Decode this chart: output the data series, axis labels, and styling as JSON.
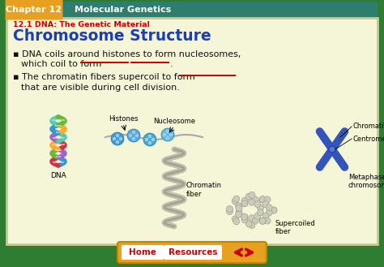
{
  "header_bg": "#2e7d6e",
  "header_chapter_bg": "#e8a020",
  "header_chapter_text": "Chapter 12",
  "header_title_text": "Molecular Genetics",
  "subheader_text": "12.1 DNA: The Genetic Material",
  "subheader_color": "#cc0000",
  "slide_title": "Chromosome Structure",
  "slide_title_color": "#1a3eb8",
  "main_bg": "#f5f5d8",
  "outer_bg": "#2e7d32",
  "bullet1_line1": "▪ DNA coils around histones to form nucleosomes,",
  "bullet1_line2": "which coil to form",
  "bullet2_line1": "▪ The chromatin fibers supercoil to form",
  "bullet2_line2": "that are visible during cell division.",
  "bullet_color": "#111111",
  "underline_color": "#cc0000",
  "bottom_bar_bg": "#e8a020",
  "bottom_bar_text_home": "Home",
  "bottom_bar_text_resources": "Resources",
  "bottom_bar_text_color": "#cc0000",
  "arrow_color": "#cc0000",
  "fig_width": 4.74,
  "fig_height": 3.29,
  "dpi": 100
}
